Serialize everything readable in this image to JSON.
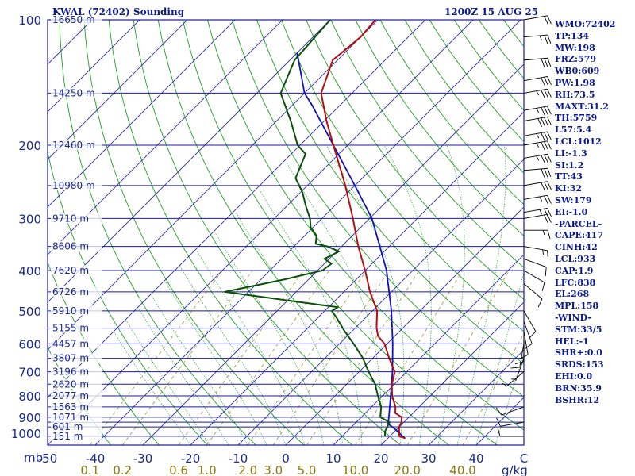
{
  "header": {
    "title_left": "KWAL (72402) Sounding",
    "title_right": "1200Z 15 AUG 25"
  },
  "colors": {
    "isobar": "#1a1aa0",
    "isotherm": "#2a2aa8",
    "dry_adiabat": "#20a020",
    "moist_adiabat": "#20a020",
    "mixing_ratio": "#a0a040",
    "temperature": "#b01010",
    "dewpoint": "#0a500a",
    "parcel": "#1010c0",
    "wind_barb": "#000000",
    "text": "#0a1a8a"
  },
  "chart_data": {
    "type": "skew-t",
    "pressure_unit_label": "mb",
    "mixing_ratio_unit_label": "g/kg",
    "pressure_ticks": [
      {
        "p": 100,
        "label": "100"
      },
      {
        "p": 200,
        "label": "200"
      },
      {
        "p": 300,
        "label": "300"
      },
      {
        "p": 400,
        "label": "400"
      },
      {
        "p": 500,
        "label": "500"
      },
      {
        "p": 600,
        "label": "600"
      },
      {
        "p": 700,
        "label": "700"
      },
      {
        "p": 800,
        "label": "800"
      },
      {
        "p": 900,
        "label": "900"
      },
      {
        "p": 1000,
        "label": "1000"
      }
    ],
    "isobars": [
      100,
      150,
      200,
      250,
      300,
      350,
      400,
      450,
      500,
      550,
      600,
      650,
      700,
      750,
      800,
      850,
      900,
      925,
      950,
      1000
    ],
    "temperature_ticks": [
      {
        "t": -50,
        "label": "-50"
      },
      {
        "t": -40,
        "label": "-40"
      },
      {
        "t": -30,
        "label": "-30"
      },
      {
        "t": -20,
        "label": "-20"
      },
      {
        "t": -10,
        "label": "-10"
      },
      {
        "t": 0,
        "label": "0"
      },
      {
        "t": 10,
        "label": "10"
      },
      {
        "t": 20,
        "label": "20"
      },
      {
        "t": 30,
        "label": "30"
      },
      {
        "t": 40,
        "label": "40"
      },
      {
        "t": 50,
        "label": "C"
      }
    ],
    "mixing_ratio_ticks": [
      {
        "w": 0.1,
        "label": "0.1"
      },
      {
        "w": 0.2,
        "label": "0.2"
      },
      {
        "w": 0.6,
        "label": "0.6"
      },
      {
        "w": 1.0,
        "label": "1.0"
      },
      {
        "w": 2.0,
        "label": "2.0"
      },
      {
        "w": 3.0,
        "label": "3.0"
      },
      {
        "w": 5.0,
        "label": "5.0"
      },
      {
        "w": 10.0,
        "label": "10.0"
      },
      {
        "w": 20.0,
        "label": "20.0"
      },
      {
        "w": 40.0,
        "label": "40.0"
      }
    ],
    "heights": [
      {
        "p": 100,
        "label": "16650 m"
      },
      {
        "p": 150,
        "label": "14250 m"
      },
      {
        "p": 200,
        "label": "12460 m"
      },
      {
        "p": 250,
        "label": "10980 m"
      },
      {
        "p": 300,
        "label": "9710 m"
      },
      {
        "p": 350,
        "label": "8606 m"
      },
      {
        "p": 400,
        "label": "7620 m"
      },
      {
        "p": 450,
        "label": "6726 m"
      },
      {
        "p": 500,
        "label": "5910 m"
      },
      {
        "p": 550,
        "label": "5155 m"
      },
      {
        "p": 600,
        "label": "4457 m"
      },
      {
        "p": 650,
        "label": "3807 m"
      },
      {
        "p": 700,
        "label": "3196 m"
      },
      {
        "p": 750,
        "label": "2620 m"
      },
      {
        "p": 800,
        "label": "2077 m"
      },
      {
        "p": 850,
        "label": "1563 m"
      },
      {
        "p": 900,
        "label": "1071 m"
      },
      {
        "p": 950,
        "label": "601 m"
      },
      {
        "p": 1000,
        "label": "151 m"
      }
    ],
    "temperature_profile": [
      {
        "p": 1010,
        "t": 23.5
      },
      {
        "p": 1000,
        "t": 22.0
      },
      {
        "p": 975,
        "t": 21.0
      },
      {
        "p": 950,
        "t": 20.0
      },
      {
        "p": 925,
        "t": 19.5
      },
      {
        "p": 900,
        "t": 18.5
      },
      {
        "p": 880,
        "t": 16.3
      },
      {
        "p": 850,
        "t": 15.0
      },
      {
        "p": 800,
        "t": 12.0
      },
      {
        "p": 750,
        "t": 9.5
      },
      {
        "p": 700,
        "t": 7.5
      },
      {
        "p": 650,
        "t": 3.5
      },
      {
        "p": 600,
        "t": -0.5
      },
      {
        "p": 575,
        "t": -3.5
      },
      {
        "p": 550,
        "t": -5.5
      },
      {
        "p": 500,
        "t": -9.0
      },
      {
        "p": 450,
        "t": -14.5
      },
      {
        "p": 400,
        "t": -20.0
      },
      {
        "p": 350,
        "t": -26.5
      },
      {
        "p": 300,
        "t": -33.5
      },
      {
        "p": 250,
        "t": -42.0
      },
      {
        "p": 200,
        "t": -53.0
      },
      {
        "p": 175,
        "t": -59.5
      },
      {
        "p": 150,
        "t": -66.5
      },
      {
        "p": 125,
        "t": -71.0
      },
      {
        "p": 110,
        "t": -70.0
      },
      {
        "p": 100,
        "t": -70.5
      }
    ],
    "dewpoint_profile": [
      {
        "p": 1000,
        "t": 19.0
      },
      {
        "p": 975,
        "t": 18.0
      },
      {
        "p": 950,
        "t": 17.5
      },
      {
        "p": 925,
        "t": 17.0
      },
      {
        "p": 900,
        "t": 14.0
      },
      {
        "p": 850,
        "t": 12.0
      },
      {
        "p": 800,
        "t": 9.0
      },
      {
        "p": 750,
        "t": 6.0
      },
      {
        "p": 700,
        "t": 2.0
      },
      {
        "p": 650,
        "t": -2.0
      },
      {
        "p": 600,
        "t": -7.0
      },
      {
        "p": 560,
        "t": -11.5
      },
      {
        "p": 520,
        "t": -16.0
      },
      {
        "p": 500,
        "t": -18.5
      },
      {
        "p": 490,
        "t": -18.0
      },
      {
        "p": 450,
        "t": -45.0
      },
      {
        "p": 420,
        "t": -35.0
      },
      {
        "p": 400,
        "t": -29.0
      },
      {
        "p": 385,
        "t": -28.5
      },
      {
        "p": 375,
        "t": -31.0
      },
      {
        "p": 360,
        "t": -29.5
      },
      {
        "p": 350,
        "t": -33.0
      },
      {
        "p": 345,
        "t": -36.0
      },
      {
        "p": 330,
        "t": -37.5
      },
      {
        "p": 315,
        "t": -40.5
      },
      {
        "p": 300,
        "t": -42.5
      },
      {
        "p": 280,
        "t": -46.0
      },
      {
        "p": 260,
        "t": -49.5
      },
      {
        "p": 240,
        "t": -54.0
      },
      {
        "p": 210,
        "t": -57.0
      },
      {
        "p": 200,
        "t": -60.5
      },
      {
        "p": 175,
        "t": -67.0
      },
      {
        "p": 150,
        "t": -75.0
      },
      {
        "p": 125,
        "t": -79.0
      },
      {
        "p": 100,
        "t": -80.0
      }
    ],
    "parcel_profile": [
      {
        "p": 1010,
        "t": 23.5
      },
      {
        "p": 960,
        "t": 19.5
      },
      {
        "p": 933,
        "t": 17.0
      },
      {
        "p": 900,
        "t": 15.8
      },
      {
        "p": 850,
        "t": 13.8
      },
      {
        "p": 800,
        "t": 11.7
      },
      {
        "p": 700,
        "t": 7.0
      },
      {
        "p": 600,
        "t": 1.2
      },
      {
        "p": 500,
        "t": -6.0
      },
      {
        "p": 400,
        "t": -15.5
      },
      {
        "p": 300,
        "t": -29.5
      },
      {
        "p": 250,
        "t": -40.0
      },
      {
        "p": 200,
        "t": -53.0
      },
      {
        "p": 160,
        "t": -66.0
      },
      {
        "p": 150,
        "t": -70.0
      },
      {
        "p": 120,
        "t": -80.0
      }
    ],
    "wind_barbs": [
      {
        "p": 100,
        "dir": 80,
        "spd": 20
      },
      {
        "p": 110,
        "dir": 85,
        "spd": 25
      },
      {
        "p": 125,
        "dir": 85,
        "spd": 30
      },
      {
        "p": 140,
        "dir": 80,
        "spd": 30
      },
      {
        "p": 150,
        "dir": 80,
        "spd": 35
      },
      {
        "p": 165,
        "dir": 80,
        "spd": 35
      },
      {
        "p": 175,
        "dir": 80,
        "spd": 40
      },
      {
        "p": 190,
        "dir": 80,
        "spd": 35
      },
      {
        "p": 200,
        "dir": 80,
        "spd": 35
      },
      {
        "p": 215,
        "dir": 80,
        "spd": 35
      },
      {
        "p": 230,
        "dir": 85,
        "spd": 30
      },
      {
        "p": 250,
        "dir": 80,
        "spd": 30
      },
      {
        "p": 270,
        "dir": 80,
        "spd": 25
      },
      {
        "p": 290,
        "dir": 80,
        "spd": 25
      },
      {
        "p": 300,
        "dir": 80,
        "spd": 20
      },
      {
        "p": 320,
        "dir": 90,
        "spd": 15
      },
      {
        "p": 350,
        "dir": 100,
        "spd": 15
      },
      {
        "p": 375,
        "dir": 110,
        "spd": 10
      },
      {
        "p": 400,
        "dir": 120,
        "spd": 10
      },
      {
        "p": 430,
        "dir": 130,
        "spd": 10
      },
      {
        "p": 500,
        "dir": 150,
        "spd": 10
      },
      {
        "p": 530,
        "dir": 160,
        "spd": 10
      },
      {
        "p": 560,
        "dir": 170,
        "spd": 10
      },
      {
        "p": 580,
        "dir": 180,
        "spd": 10
      },
      {
        "p": 600,
        "dir": 190,
        "spd": 10
      },
      {
        "p": 650,
        "dir": 200,
        "spd": 5
      },
      {
        "p": 700,
        "dir": 230,
        "spd": 5
      },
      {
        "p": 850,
        "dir": 250,
        "spd": 10
      },
      {
        "p": 925,
        "dir": 260,
        "spd": 10
      },
      {
        "p": 1000,
        "dir": 270,
        "spd": 10
      }
    ]
  },
  "indices": [
    "WMO:72402",
    "TP:134",
    "MW:198",
    "FRZ:579",
    "WB0:609",
    "PW:1.98",
    "RH:73.5",
    "MAXT:31.2",
    "TH:5759",
    "L57:5.4",
    "LCL:1012",
    "LI:-1.3",
    "SI:1.2",
    "TT:43",
    "KI:32",
    "SW:179",
    "EI:-1.0",
    "-PARCEL-",
    "CAPE:417",
    "CINH:42",
    "LCL:933",
    "CAP:1.9",
    "LFC:838",
    "EL:268",
    "MPL:158",
    "-WIND-",
    "STM:33/5",
    "HEL:-1",
    "SHR+:0.0",
    "SRDS:153",
    "EHI:0.0",
    "BRN:35.9",
    "BSHR:12"
  ]
}
